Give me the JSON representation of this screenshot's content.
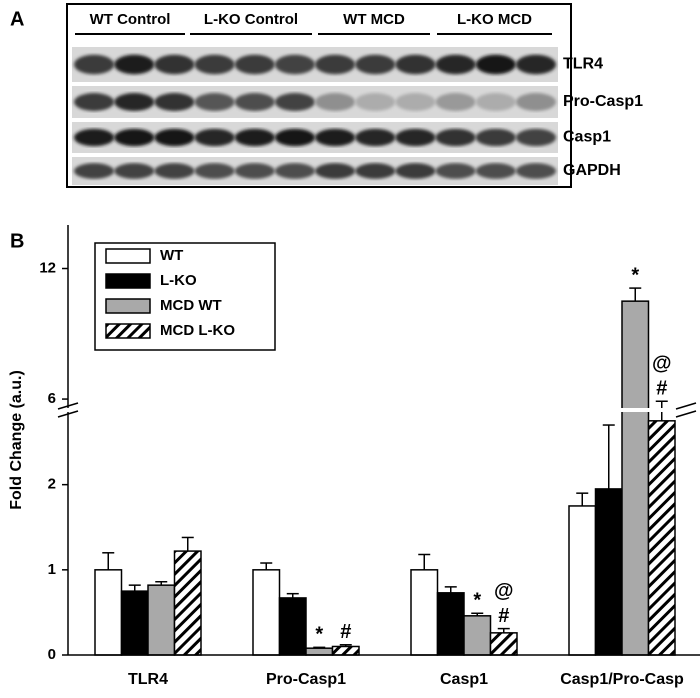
{
  "panel_a": {
    "label": "A",
    "groups": [
      "WT Control",
      "L-KO Control",
      "WT MCD",
      "L-KO MCD"
    ],
    "rows": [
      "TLR4",
      "Pro-Casp1",
      "Casp1",
      "GAPDH"
    ]
  },
  "chart_data": {
    "type": "bar",
    "panel_label": "B",
    "ylabel": "Fold Change (a.u.)",
    "categories": [
      "TLR4",
      "Pro-Casp1",
      "Casp1",
      "Casp1/Pro-Casp"
    ],
    "ylim_lower": [
      0,
      2.9
    ],
    "yticks_lower": [
      0,
      1,
      2
    ],
    "ylim_upper": [
      4.9,
      14
    ],
    "yticks_upper": [
      6,
      12
    ],
    "series": [
      {
        "name": "WT",
        "color": "#ffffff",
        "values": [
          1.0,
          1.0,
          1.0,
          1.75
        ],
        "errors": [
          0.2,
          0.08,
          0.18,
          0.15
        ]
      },
      {
        "name": "L-KO",
        "color": "#000000",
        "values": [
          0.75,
          0.67,
          0.73,
          1.95
        ],
        "errors": [
          0.07,
          0.05,
          0.07,
          0.75
        ]
      },
      {
        "name": "MCD WT",
        "color": "#a9a9a9",
        "values": [
          0.82,
          0.08,
          0.46,
          10.5
        ],
        "errors": [
          0.04,
          0.01,
          0.03,
          0.6
        ],
        "annotations": [
          [],
          [
            "*"
          ],
          [
            "*"
          ],
          [
            "*"
          ]
        ]
      },
      {
        "name": "MCD L-KO",
        "color": "#ffffff",
        "hatch": true,
        "values": [
          1.22,
          0.1,
          0.26,
          5.0
        ],
        "errors": [
          0.16,
          0.02,
          0.05,
          0.9
        ],
        "annotations": [
          [],
          [
            "#"
          ],
          [
            "#",
            "@"
          ],
          [
            "#",
            "@"
          ]
        ]
      }
    ]
  }
}
